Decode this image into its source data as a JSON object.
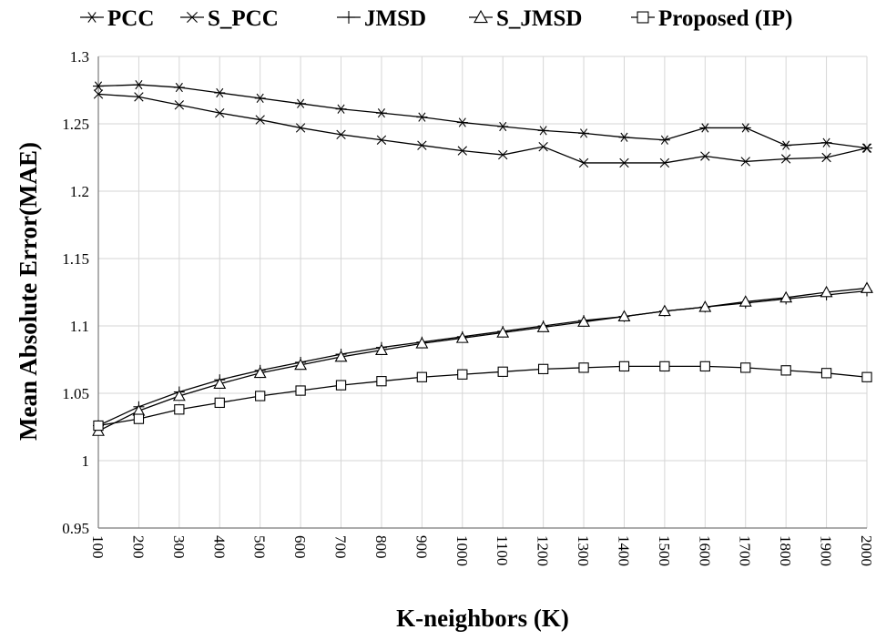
{
  "chart_data": {
    "type": "line",
    "title": "",
    "xlabel": "K-neighbors (K)",
    "ylabel": "Mean Absolute Error(MAE)",
    "ylim": [
      0.95,
      1.3
    ],
    "yticks": [
      "0.95",
      "1",
      "1.05",
      "1.1",
      "1.15",
      "1.2",
      "1.25",
      "1.3"
    ],
    "grid": true,
    "legend_position": "top",
    "categories": [
      "100",
      "200",
      "300",
      "400",
      "500",
      "600",
      "700",
      "800",
      "900",
      "1000",
      "1100",
      "1200",
      "1300",
      "1400",
      "1500",
      "1600",
      "1700",
      "1800",
      "1900",
      "2000"
    ],
    "series": [
      {
        "name": "PCC",
        "marker": "asterisk",
        "values": [
          1.278,
          1.279,
          1.277,
          1.273,
          1.269,
          1.265,
          1.261,
          1.258,
          1.255,
          1.251,
          1.248,
          1.245,
          1.243,
          1.24,
          1.238,
          1.247,
          1.247,
          1.234,
          1.236,
          1.232
        ]
      },
      {
        "name": "S_PCC",
        "marker": "cross",
        "values": [
          1.272,
          1.27,
          1.264,
          1.258,
          1.253,
          1.247,
          1.242,
          1.238,
          1.234,
          1.23,
          1.227,
          1.233,
          1.221,
          1.221,
          1.221,
          1.226,
          1.222,
          1.224,
          1.225,
          1.232
        ]
      },
      {
        "name": "JMSD",
        "marker": "plus",
        "values": [
          1.026,
          1.04,
          1.051,
          1.06,
          1.067,
          1.073,
          1.079,
          1.084,
          1.088,
          1.092,
          1.096,
          1.1,
          1.104,
          1.107,
          1.111,
          1.114,
          1.117,
          1.12,
          1.123,
          1.126
        ]
      },
      {
        "name": "S_JMSD",
        "marker": "triangle",
        "values": [
          1.022,
          1.037,
          1.048,
          1.057,
          1.065,
          1.071,
          1.077,
          1.082,
          1.087,
          1.091,
          1.095,
          1.099,
          1.103,
          1.107,
          1.111,
          1.114,
          1.118,
          1.121,
          1.125,
          1.128
        ]
      },
      {
        "name": "Proposed (IP)",
        "marker": "square",
        "values": [
          1.026,
          1.031,
          1.038,
          1.043,
          1.048,
          1.052,
          1.056,
          1.059,
          1.062,
          1.064,
          1.066,
          1.068,
          1.069,
          1.07,
          1.07,
          1.07,
          1.069,
          1.067,
          1.065,
          1.062
        ]
      }
    ]
  }
}
